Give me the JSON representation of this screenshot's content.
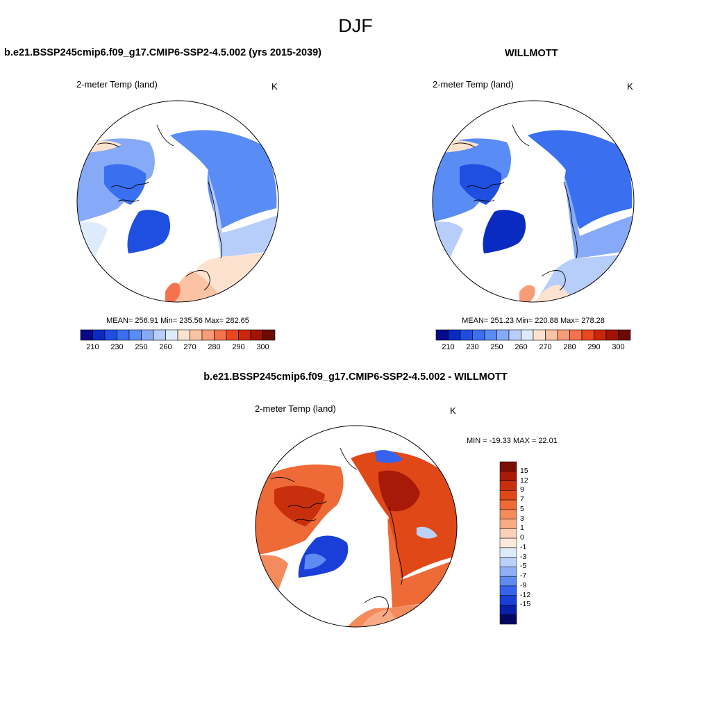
{
  "figure": {
    "title": "DJF"
  },
  "panels": [
    {
      "id": "model",
      "title": "b.e21.BSSP245cmip6.f09_g17.CMIP6-SSP2-4.5.002 (yrs 2015-2039)",
      "variable": "2-meter Temp (land)",
      "units": "K",
      "stats": "MEAN= 256.91  Min= 235.56  Max= 282.65"
    },
    {
      "id": "obs",
      "title": "WILLMOTT",
      "variable": "2-meter Temp (land)",
      "units": "K",
      "stats": "MEAN= 251.23  Min= 220.88  Max= 278.28"
    },
    {
      "id": "diff",
      "title": "b.e21.BSSP245cmip6.f09_g17.CMIP6-SSP2-4.5.002 - WILLMOTT",
      "variable": "2-meter Temp (land)",
      "units": "K",
      "stats": "MIN = -19.33 MAX =  22.01"
    }
  ],
  "colorbars": {
    "absolute": {
      "tick_labels": [
        "210",
        "230",
        "250",
        "260",
        "270",
        "280",
        "290",
        "300"
      ],
      "colors": [
        "#08088a",
        "#0a2bc2",
        "#1f4fe0",
        "#3a6ff0",
        "#5a8cf5",
        "#86aaf7",
        "#b7cdfa",
        "#ddebfb",
        "#fde3cf",
        "#fbc3a3",
        "#f89c77",
        "#f4724c",
        "#e8471f",
        "#c9270b",
        "#a01406",
        "#6e0a04"
      ]
    },
    "difference": {
      "tick_labels": [
        "15",
        "12",
        "9",
        "7",
        "5",
        "3",
        "1",
        "0",
        "-1",
        "-3",
        "-5",
        "-7",
        "-9",
        "-12",
        "-15"
      ],
      "colors": [
        "#7a0e05",
        "#a81a08",
        "#c8300d",
        "#e04818",
        "#ee6a36",
        "#f48b5c",
        "#f8aa84",
        "#fbd0b5",
        "#fde9dc",
        "#dfeafb",
        "#bcd1fa",
        "#8fb0f6",
        "#5e8bf2",
        "#3563ec",
        "#1a3fd8",
        "#0a1fa8",
        "#05085e"
      ]
    }
  }
}
